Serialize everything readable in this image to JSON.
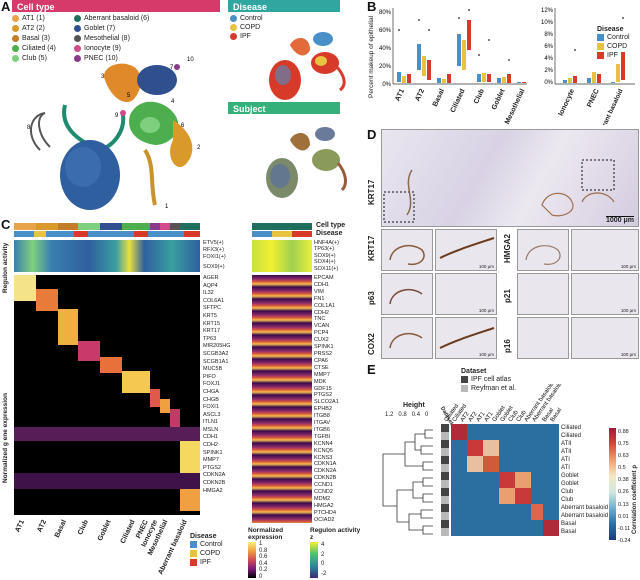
{
  "panel_labels": {
    "a": "A",
    "b": "B",
    "c": "C",
    "d": "D",
    "e": "E"
  },
  "panel_a": {
    "cell_type_header": "Cell type",
    "disease_header": "Disease",
    "subject_header": "Subject",
    "cell_types": [
      {
        "label": "AT1 (1)",
        "color": "#e8a24a"
      },
      {
        "label": "AT2 (2)",
        "color": "#d99a2b"
      },
      {
        "label": "Basal (3)",
        "color": "#c27d2a"
      },
      {
        "label": "Ciliated (4)",
        "color": "#4cae4c"
      },
      {
        "label": "Club (5)",
        "color": "#7ecf7e"
      },
      {
        "label": "Aberrant basaloid (6)",
        "color": "#1f6f5f"
      },
      {
        "label": "Goblet (7)",
        "color": "#2f4f8f"
      },
      {
        "label": "Mesothelial (8)",
        "color": "#555555"
      },
      {
        "label": "Ionocyte (9)",
        "color": "#d14a8b"
      },
      {
        "label": "PNEC (10)",
        "color": "#8b3a8b"
      }
    ],
    "diseases": [
      {
        "label": "Control",
        "color": "#4a90c8"
      },
      {
        "label": "COPD",
        "color": "#e8c340"
      },
      {
        "label": "IPF",
        "color": "#d83a2a"
      }
    ],
    "cluster_numbers": [
      "1",
      "2",
      "3",
      "4",
      "5",
      "6",
      "7",
      "8",
      "9",
      "10"
    ],
    "colors": {
      "cell_type_bar": "#d63a6b",
      "disease_bar": "#2fa7a0",
      "subject_bar": "#35b07a"
    }
  },
  "panel_b": {
    "ylabel": "Percent makeup of epithelial",
    "legend_title": "Disease",
    "left_ticks": [
      "80%",
      "60%",
      "40%",
      "20%",
      "0%"
    ],
    "right_ticks": [
      "12%",
      "10%",
      "8%",
      "6%",
      "4%",
      "2%",
      "0%"
    ],
    "left_categories": [
      "AT1",
      "AT2",
      "Basal",
      "Ciliated",
      "Club",
      "Goblet",
      "Mesothelial"
    ],
    "right_categories": [
      "Ionocyte",
      "PNEC",
      "Aberrant basaloid"
    ]
  },
  "panel_c": {
    "row_titles": [
      "Cell type",
      "Disease"
    ],
    "regulon_label": "Regulon activity",
    "gene_expr_label": "Normalized g ene expression",
    "regulons_left": [
      "ETV5(+)",
      "RFX3(+)",
      "FOXI1(+)",
      "SOX9(+)"
    ],
    "regulons_right": [
      "HNF4A(+)",
      "TP63(+)",
      "SOX9(+)",
      "SOX4(+)",
      "SOX11(+)"
    ],
    "genes_left": [
      "AGER",
      "AQP4",
      "IL32",
      "COL6A1",
      "SFTPC",
      "KRT5",
      "KRT15",
      "KRT17",
      "TP63",
      "MIR205HG",
      "SCGB3A2",
      "SCGB1A1",
      "MUC5B",
      "PIFO",
      "FOXJ1",
      "CHGA",
      "CHGB",
      "FOXI1",
      "ASCL3",
      "ITLN1",
      "MSLN",
      "CDH1",
      "CDH2",
      "SPINK1",
      "MMP7",
      "PTGS2",
      "CDKN2A",
      "CDKN2B",
      "HMGA2"
    ],
    "genes_right": [
      "EPCAM",
      "CDH1",
      "VIM",
      "FN1",
      "COL1A1",
      "CDH2",
      "TNC",
      "VCAN",
      "PCP4",
      "CUX2",
      "SPINK1",
      "PRSS2",
      "CPA6",
      "CTSE",
      "MMP7",
      "MDK",
      "GDF15",
      "PTGS2",
      "SLCO2A1",
      "EPHB2",
      "ITGB8",
      "ITGAV",
      "ITGB6",
      "TGFBI",
      "KCNN4",
      "KCNQ5",
      "KCNS3",
      "CDKN1A",
      "CDKN2A",
      "CDKN2B",
      "CCND1",
      "CCND2",
      "MDM2",
      "HMGA2",
      "PTCHD4",
      "OCIAD2"
    ],
    "x_categories": [
      "AT1",
      "AT2",
      "Basal",
      "Club",
      "Goblet",
      "Ciliated",
      "PNEC",
      "Ionocyte",
      "Mesothelial",
      "Aberrant basaloid"
    ],
    "legend_disease_title": "Disease",
    "legend_diseases": [
      "Control",
      "COPD",
      "IPF"
    ],
    "legend_norm_title": "Normalized expression",
    "legend_norm_ticks": [
      "1",
      "0.8",
      "0.6",
      "0.4",
      "0.2",
      "0"
    ],
    "legend_reg_title": "Regulon activity z",
    "legend_reg_ticks": [
      "4",
      "2",
      "0",
      "-2"
    ]
  },
  "panel_d": {
    "overview_label": "KRT17",
    "overview_scale": "1000 μm",
    "stains_left": [
      "KRT17",
      "p63",
      "COX2"
    ],
    "stains_right": [
      "HMGA2",
      "p21",
      "p16"
    ],
    "scale_small": "100 μm"
  },
  "panel_e": {
    "dataset_title": "Dataset",
    "datasets": [
      {
        "label": "IPF cell atlas",
        "color": "#444444"
      },
      {
        "label": "Reyfman et al.",
        "color": "#b8b8b8"
      }
    ],
    "height_label": "Height",
    "height_ticks": [
      "1.2",
      "0.8",
      "0.4",
      "0"
    ],
    "row_labels": [
      "Ciliated",
      "Ciliated",
      "ATII",
      "ATII",
      "ATI",
      "ATI",
      "Goblet",
      "Goblet",
      "Club",
      "Club",
      "Aberrant basaloid",
      "Aberrant basaloid",
      "Basal",
      "Basal"
    ],
    "col_labels": [
      "Dataset",
      "Ciliated",
      "Ciliated",
      "AT2",
      "AT2",
      "AT1",
      "AT1",
      "Goblet",
      "Goblet",
      "Club",
      "Club",
      "Aberrant basaloid",
      "Aberrant basaloid",
      "Basal",
      "Basal"
    ],
    "colorbar_title": "Correlation coefficient ρ",
    "colorbar_ticks": [
      "0.88",
      "0.75",
      "0.63",
      "0.5",
      "0.38",
      "0.26",
      "0.13",
      "0.01",
      "-0.11",
      "-0.24"
    ]
  }
}
